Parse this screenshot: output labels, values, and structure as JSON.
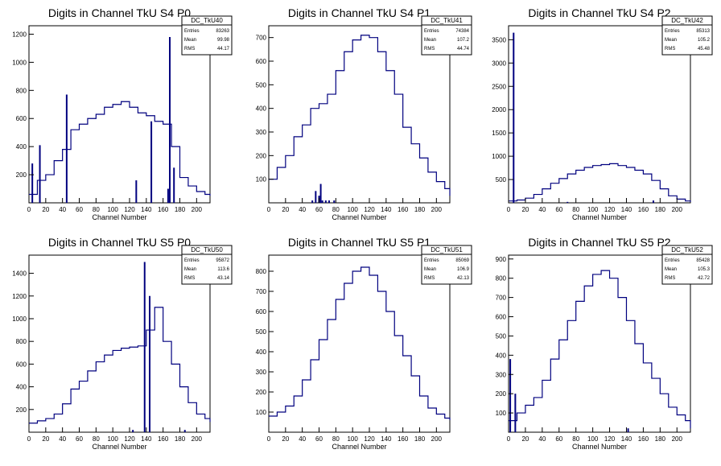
{
  "colors": {
    "line": "#00007f",
    "axis": "#000000",
    "background": "#ffffff"
  },
  "chart_data": [
    {
      "type": "histogram",
      "title": "Digits in Channel TkU S4 P0",
      "xlabel": "Channel Number",
      "ylabel": "",
      "xlim": [
        0,
        216
      ],
      "ylim": [
        0,
        1260
      ],
      "xticks": [
        0,
        20,
        40,
        60,
        80,
        100,
        120,
        140,
        160,
        180,
        200
      ],
      "yticks": [
        200,
        400,
        600,
        800,
        1000,
        1200
      ],
      "stats": {
        "name": "DC_TkU40",
        "rows": [
          [
            "Entries",
            "83263"
          ],
          [
            "Mean",
            "99.98"
          ],
          [
            "RMS",
            "44.17"
          ]
        ]
      },
      "x": [
        0,
        10,
        20,
        30,
        40,
        50,
        60,
        70,
        80,
        90,
        100,
        110,
        120,
        130,
        140,
        150,
        160,
        170,
        180,
        190,
        200,
        210,
        216
      ],
      "values": [
        60,
        160,
        200,
        300,
        380,
        520,
        560,
        600,
        630,
        680,
        700,
        720,
        680,
        640,
        620,
        580,
        560,
        400,
        180,
        120,
        80,
        60,
        50
      ],
      "spikes": [
        [
          4,
          280
        ],
        [
          13,
          410
        ],
        [
          45,
          770
        ],
        [
          128,
          160
        ],
        [
          146,
          580
        ],
        [
          166,
          100
        ],
        [
          168,
          1180
        ],
        [
          173,
          250
        ]
      ]
    },
    {
      "type": "histogram",
      "title": "Digits in Channel TkU S4 P1",
      "xlabel": "Channel Number",
      "ylabel": "",
      "xlim": [
        0,
        216
      ],
      "ylim": [
        0,
        750
      ],
      "xticks": [
        0,
        20,
        40,
        60,
        80,
        100,
        120,
        140,
        160,
        180,
        200
      ],
      "yticks": [
        100,
        200,
        300,
        400,
        500,
        600,
        700
      ],
      "stats": {
        "name": "DC_TkU41",
        "rows": [
          [
            "Entries",
            "74384"
          ],
          [
            "Mean",
            "107.2"
          ],
          [
            "RMS",
            "44.74"
          ]
        ]
      },
      "x": [
        0,
        10,
        20,
        30,
        40,
        50,
        60,
        70,
        80,
        90,
        100,
        110,
        120,
        130,
        140,
        150,
        160,
        170,
        180,
        190,
        200,
        210,
        216
      ],
      "values": [
        100,
        150,
        200,
        280,
        330,
        400,
        420,
        460,
        560,
        640,
        690,
        710,
        700,
        640,
        560,
        460,
        320,
        250,
        190,
        130,
        90,
        60,
        30
      ],
      "spikes": [
        [
          52,
          10
        ],
        [
          56,
          50
        ],
        [
          60,
          30
        ],
        [
          62,
          80
        ],
        [
          64,
          10
        ],
        [
          68,
          10
        ],
        [
          72,
          10
        ],
        [
          78,
          10
        ]
      ]
    },
    {
      "type": "histogram",
      "title": "Digits in Channel TkU S4 P2",
      "xlabel": "Channel Number",
      "ylabel": "",
      "xlim": [
        0,
        216
      ],
      "ylim": [
        0,
        3800
      ],
      "xticks": [
        0,
        20,
        40,
        60,
        80,
        100,
        120,
        140,
        160,
        180,
        200
      ],
      "yticks": [
        500,
        1000,
        1500,
        2000,
        2500,
        3000,
        3500
      ],
      "stats": {
        "name": "DC_TkU42",
        "rows": [
          [
            "Entries",
            "85313"
          ],
          [
            "Mean",
            "105.2"
          ],
          [
            "RMS",
            "45.48"
          ]
        ]
      },
      "x": [
        0,
        10,
        20,
        30,
        40,
        50,
        60,
        70,
        80,
        90,
        100,
        110,
        120,
        130,
        140,
        150,
        160,
        170,
        180,
        190,
        200,
        210,
        216
      ],
      "values": [
        40,
        60,
        100,
        180,
        300,
        420,
        520,
        620,
        700,
        760,
        800,
        820,
        840,
        800,
        760,
        700,
        620,
        480,
        300,
        150,
        80,
        40,
        20
      ],
      "spikes": [
        [
          6,
          3650
        ],
        [
          70,
          20
        ],
        [
          172,
          50
        ]
      ]
    },
    {
      "type": "histogram",
      "title": "Digits in Channel TkU S5 P0",
      "xlabel": "Channel Number",
      "ylabel": "",
      "xlim": [
        0,
        216
      ],
      "ylim": [
        0,
        1560
      ],
      "xticks": [
        0,
        20,
        40,
        60,
        80,
        100,
        120,
        140,
        160,
        180,
        200
      ],
      "yticks": [
        200,
        400,
        600,
        800,
        1000,
        1200,
        1400
      ],
      "stats": {
        "name": "DC_TkU50",
        "rows": [
          [
            "Entries",
            "95872"
          ],
          [
            "Mean",
            "113.6"
          ],
          [
            "RMS",
            "43.14"
          ]
        ]
      },
      "x": [
        0,
        10,
        20,
        30,
        40,
        50,
        60,
        70,
        80,
        90,
        100,
        110,
        120,
        130,
        140,
        150,
        160,
        170,
        180,
        190,
        200,
        210,
        216
      ],
      "values": [
        80,
        100,
        120,
        160,
        250,
        380,
        450,
        540,
        620,
        680,
        720,
        740,
        750,
        760,
        900,
        1100,
        800,
        600,
        400,
        260,
        160,
        120,
        90
      ],
      "spikes": [
        [
          124,
          20
        ],
        [
          138,
          1500
        ],
        [
          144,
          1200
        ],
        [
          186,
          20
        ]
      ]
    },
    {
      "type": "histogram",
      "title": "Digits in Channel TkU S5 P1",
      "xlabel": "Channel Number",
      "ylabel": "",
      "xlim": [
        0,
        216
      ],
      "ylim": [
        0,
        880
      ],
      "xticks": [
        0,
        20,
        40,
        60,
        80,
        100,
        120,
        140,
        160,
        180,
        200
      ],
      "yticks": [
        100,
        200,
        300,
        400,
        500,
        600,
        700,
        800
      ],
      "stats": {
        "name": "DC_TkU51",
        "rows": [
          [
            "Entries",
            "85069"
          ],
          [
            "Mean",
            "106.9"
          ],
          [
            "RMS",
            "42.13"
          ]
        ]
      },
      "x": [
        0,
        10,
        20,
        30,
        40,
        50,
        60,
        70,
        80,
        90,
        100,
        110,
        120,
        130,
        140,
        150,
        160,
        170,
        180,
        190,
        200,
        210,
        216
      ],
      "values": [
        80,
        100,
        130,
        180,
        260,
        360,
        460,
        560,
        660,
        740,
        800,
        820,
        780,
        700,
        600,
        480,
        380,
        280,
        180,
        120,
        90,
        70,
        60
      ],
      "spikes": []
    },
    {
      "type": "histogram",
      "title": "Digits in Channel TkU S5 P2",
      "xlabel": "Channel Number",
      "ylabel": "",
      "xlim": [
        0,
        216
      ],
      "ylim": [
        0,
        920
      ],
      "xticks": [
        0,
        20,
        40,
        60,
        80,
        100,
        120,
        140,
        160,
        180,
        200
      ],
      "yticks": [
        100,
        200,
        300,
        400,
        500,
        600,
        700,
        800,
        900
      ],
      "stats": {
        "name": "DC_TkU52",
        "rows": [
          [
            "Entries",
            "85428"
          ],
          [
            "Mean",
            "105.3"
          ],
          [
            "RMS",
            "42.72"
          ]
        ]
      },
      "x": [
        0,
        10,
        20,
        30,
        40,
        50,
        60,
        70,
        80,
        90,
        100,
        110,
        120,
        130,
        140,
        150,
        160,
        170,
        180,
        190,
        200,
        210,
        216
      ],
      "values": [
        60,
        100,
        140,
        180,
        270,
        380,
        480,
        580,
        680,
        760,
        820,
        840,
        800,
        700,
        580,
        460,
        360,
        280,
        200,
        130,
        90,
        60,
        20
      ],
      "spikes": [
        [
          2,
          380
        ],
        [
          8,
          200
        ],
        [
          142,
          20
        ]
      ]
    }
  ]
}
